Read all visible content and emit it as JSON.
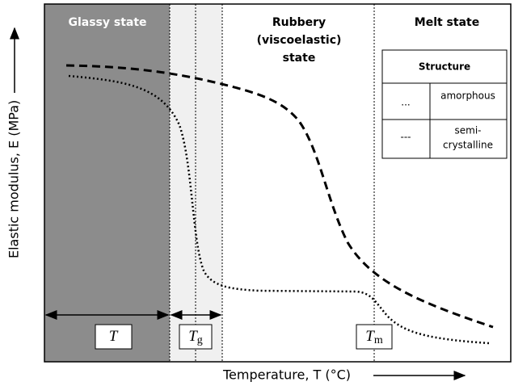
{
  "regions": {
    "glassy": "Glassy state",
    "rubbery": [
      "Rubbery",
      "(viscoelastic)",
      "state"
    ],
    "melt": "Melt state"
  },
  "table": {
    "header": "Structure",
    "rows": [
      [
        "...",
        [
          "amorphous"
        ]
      ],
      [
        "---",
        [
          "semi-",
          "crystalline"
        ]
      ]
    ]
  },
  "boxes": [
    {
      "symbol": "T",
      "subscript": ""
    },
    {
      "symbol": "T",
      "subscript": "g"
    },
    {
      "symbol": "T",
      "subscript": "m"
    }
  ],
  "axes": {
    "y_label": "Elastic modulus, E (MPa)",
    "x_label": "Temperature, T (°C)"
  }
}
